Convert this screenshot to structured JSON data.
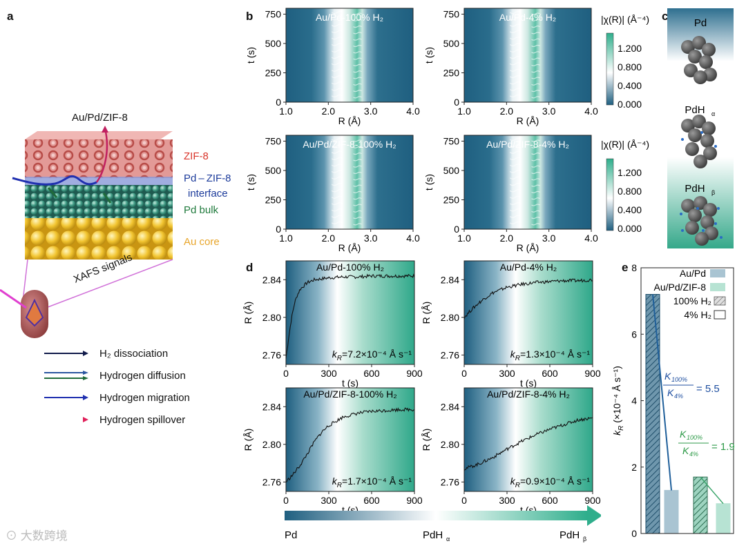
{
  "figure": {
    "panel_letters": {
      "a": "a",
      "b": "b",
      "c": "c",
      "d": "d",
      "e": "e"
    },
    "colors": {
      "dark": "#1f5f80",
      "white": "#ffffff",
      "green": "#2fae8c",
      "pink": "#e9a0b0",
      "blue_text": "#1b3a9a",
      "green_text": "#1f7a3c",
      "au_text": "#e8a52a",
      "zif_text": "#d9352b"
    },
    "panel_a": {
      "title": "Au/Pd/ZIF-8",
      "layers": {
        "zif8": "ZIF-8",
        "interface_line1": "Pd – ZIF-8",
        "interface_line2": "interface",
        "pd_bulk": "Pd bulk",
        "au_core": "Au core"
      },
      "xafs_label": "XAFS signals",
      "legend": [
        {
          "label": "H₂ dissociation",
          "color": "#101a4a"
        },
        {
          "label": "Hydrogen diffusion",
          "color": "#1f6b3a"
        },
        {
          "label": "Hydrogen migration",
          "color": "#2030b0"
        },
        {
          "label": "Hydrogen spillover",
          "color": "#c02060"
        }
      ]
    },
    "panel_b": {
      "maps": [
        {
          "title": "Au/Pd-100% H₂"
        },
        {
          "title": "Au/Pd-4% H₂"
        },
        {
          "title": "Au/Pd/ZIF-8-100% H₂"
        },
        {
          "title": "Au/Pd/ZIF-8-4% H₂"
        }
      ],
      "x_label": "R (Å)",
      "y_label": "t (s)",
      "x_ticks": [
        "1.0",
        "2.0",
        "3.0",
        "4.0"
      ],
      "y_ticks": [
        "0",
        "250",
        "500",
        "750"
      ],
      "colorbar_label": "|χ(R)| (Å⁻⁴)",
      "colorbar_ticks": [
        "1.200",
        "0.800",
        "0.400",
        "0.000"
      ]
    },
    "panel_c": {
      "states": [
        {
          "label": "Pd",
          "sub": ""
        },
        {
          "label": "PdH",
          "sub": "α"
        },
        {
          "label": "PdH",
          "sub": "β"
        }
      ]
    },
    "panel_d": {
      "plots": [
        {
          "title": "Au/Pd-100% H₂",
          "rate_prefix": "k",
          "rate_sub": "R",
          "rate_value": "=7.2×10⁻⁴ Å s⁻¹"
        },
        {
          "title": "Au/Pd-4% H₂",
          "rate_prefix": "k",
          "rate_sub": "R",
          "rate_value": "=1.3×10⁻⁴ Å s⁻¹"
        },
        {
          "title": "Au/Pd/ZIF-8-100% H₂",
          "rate_prefix": "k",
          "rate_sub": "R",
          "rate_value": "=1.7×10⁻⁴ Å s⁻¹"
        },
        {
          "title": "Au/Pd/ZIF-8-4% H₂",
          "rate_prefix": "k",
          "rate_sub": "R",
          "rate_value": "=0.9×10⁻⁴ Å s⁻¹"
        }
      ],
      "x_label": "t (s)",
      "y_label": "R (Å)",
      "x_ticks": [
        "0",
        "300",
        "600",
        "900"
      ],
      "y_ticks": [
        "2.76",
        "2.80",
        "2.84"
      ],
      "gradient_bar": {
        "left": "Pd",
        "mid": "PdH",
        "mid_sub": "α",
        "right": "PdH",
        "right_sub": "β"
      }
    },
    "panel_e": {
      "y_label_main": "k",
      "y_label_sub": "R",
      "y_label_rest": " (×10⁻⁴ Å s⁻¹)",
      "y_ticks": [
        "0",
        "2",
        "4",
        "6",
        "8"
      ],
      "legend": {
        "au_pd": "Au/Pd",
        "au_pd_zif": "Au/Pd/ZIF-8",
        "h100": "100% H₂",
        "h4": "4% H₂"
      },
      "ratio1": {
        "num": "K",
        "num_sub": "100%",
        "den": "K",
        "den_sub": "4%",
        "value": "= 5.5"
      },
      "ratio2": {
        "num": "K",
        "num_sub": "100%",
        "den": "K",
        "den_sub": "4%",
        "value": "= 1.9"
      }
    },
    "watermark": "大数跨境"
  },
  "chart_data": [
    {
      "type": "heatmap",
      "title": "Au/Pd-100% H₂",
      "xlabel": "R (Å)",
      "ylabel": "t (s)",
      "xlim": [
        1.0,
        4.0
      ],
      "ylim": [
        0,
        800
      ],
      "colorbar": {
        "label": "|χ(R)| (Å⁻⁴)",
        "range": [
          0.0,
          1.4
        ]
      }
    },
    {
      "type": "heatmap",
      "title": "Au/Pd-4% H₂",
      "xlabel": "R (Å)",
      "ylabel": "t (s)",
      "xlim": [
        1.0,
        4.0
      ],
      "ylim": [
        0,
        800
      ]
    },
    {
      "type": "heatmap",
      "title": "Au/Pd/ZIF-8-100% H₂",
      "xlabel": "R (Å)",
      "ylabel": "t (s)",
      "xlim": [
        1.0,
        4.0
      ],
      "ylim": [
        0,
        800
      ],
      "colorbar": {
        "label": "|χ(R)| (Å⁻⁴)",
        "range": [
          0.0,
          1.5
        ]
      }
    },
    {
      "type": "heatmap",
      "title": "Au/Pd/ZIF-8-4% H₂",
      "xlabel": "R (Å)",
      "ylabel": "t (s)",
      "xlim": [
        1.0,
        4.0
      ],
      "ylim": [
        0,
        800
      ]
    },
    {
      "type": "line",
      "title": "Au/Pd-100% H₂",
      "xlabel": "t (s)",
      "ylabel": "R (Å)",
      "xlim": [
        0,
        900
      ],
      "ylim": [
        2.75,
        2.86
      ],
      "series": [
        {
          "name": "R",
          "x": [
            0,
            20,
            40,
            60,
            80,
            100,
            150,
            200,
            300,
            400,
            500,
            600,
            700,
            800,
            900
          ],
          "y": [
            2.756,
            2.78,
            2.8,
            2.815,
            2.824,
            2.83,
            2.837,
            2.84,
            2.842,
            2.843,
            2.843,
            2.844,
            2.844,
            2.844,
            2.844
          ]
        }
      ]
    },
    {
      "type": "line",
      "title": "Au/Pd-4% H₂",
      "xlabel": "t (s)",
      "ylabel": "R (Å)",
      "xlim": [
        0,
        900
      ],
      "ylim": [
        2.75,
        2.86
      ],
      "series": [
        {
          "name": "R",
          "x": [
            0,
            50,
            100,
            150,
            200,
            300,
            400,
            500,
            600,
            700,
            800,
            900
          ],
          "y": [
            2.8,
            2.808,
            2.815,
            2.821,
            2.826,
            2.832,
            2.835,
            2.837,
            2.838,
            2.839,
            2.839,
            2.84
          ]
        }
      ]
    },
    {
      "type": "line",
      "title": "Au/Pd/ZIF-8-100% H₂",
      "xlabel": "t (s)",
      "ylabel": "R (Å)",
      "xlim": [
        0,
        900
      ],
      "ylim": [
        2.75,
        2.86
      ],
      "series": [
        {
          "name": "R",
          "x": [
            0,
            50,
            100,
            150,
            200,
            250,
            300,
            400,
            500,
            600,
            700,
            800,
            900
          ],
          "y": [
            2.76,
            2.768,
            2.778,
            2.79,
            2.803,
            2.813,
            2.82,
            2.829,
            2.833,
            2.835,
            2.836,
            2.837,
            2.837
          ]
        }
      ]
    },
    {
      "type": "line",
      "title": "Au/Pd/ZIF-8-4% H₂",
      "xlabel": "t (s)",
      "ylabel": "R (Å)",
      "xlim": [
        0,
        900
      ],
      "ylim": [
        2.75,
        2.86
      ],
      "series": [
        {
          "name": "R",
          "x": [
            0,
            100,
            200,
            300,
            400,
            500,
            600,
            700,
            800,
            900
          ],
          "y": [
            2.774,
            2.779,
            2.786,
            2.795,
            2.803,
            2.81,
            2.816,
            2.821,
            2.826,
            2.828
          ]
        }
      ]
    },
    {
      "type": "bar",
      "title": "",
      "xlabel": "",
      "ylabel": "kR (×10⁻⁴ Å s⁻¹)",
      "ylim": [
        0,
        8
      ],
      "categories": [
        "Au/Pd 100% H₂",
        "Au/Pd 4% H₂",
        "Au/Pd/ZIF-8 100% H₂",
        "Au/Pd/ZIF-8 4% H₂"
      ],
      "values": [
        7.2,
        1.3,
        1.7,
        0.9
      ],
      "annotations": [
        "K100%/K4% = 5.5",
        "K100%/K4% = 1.9"
      ]
    }
  ]
}
